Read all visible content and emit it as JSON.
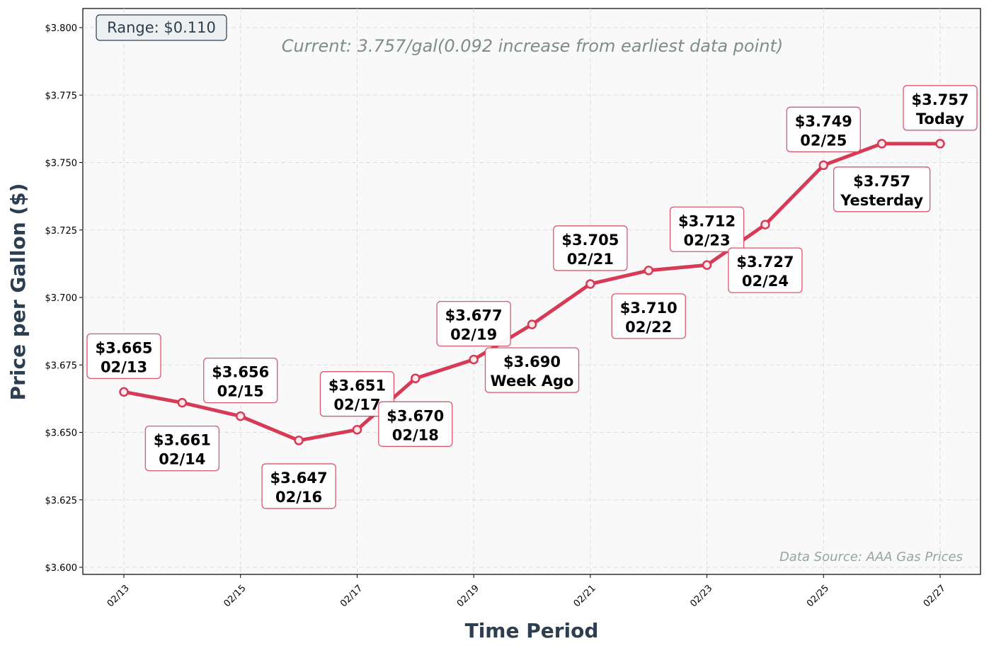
{
  "chart_data": {
    "type": "line",
    "xlabel": "Time Period",
    "ylabel": "Price per Gallon ($)",
    "ylim": [
      3.597,
      3.807
    ],
    "yticks": [
      "$3.600",
      "$3.625",
      "$3.650",
      "$3.675",
      "$3.700",
      "$3.725",
      "$3.750",
      "$3.775",
      "$3.800"
    ],
    "ytick_values": [
      3.6,
      3.625,
      3.65,
      3.675,
      3.7,
      3.725,
      3.75,
      3.775,
      3.8
    ],
    "xticks": [
      "02/13",
      "02/15",
      "02/17",
      "02/19",
      "02/21",
      "02/23",
      "02/25",
      "02/27"
    ],
    "grid": true,
    "color": "#d63a55",
    "background": "#f9f9f9",
    "x": [
      "02/13",
      "02/14",
      "02/15",
      "02/16",
      "02/17",
      "02/18",
      "02/19",
      "02/20",
      "02/21",
      "02/22",
      "02/23",
      "02/24",
      "02/25",
      "02/26",
      "02/27"
    ],
    "values": [
      3.665,
      3.661,
      3.656,
      3.647,
      3.651,
      3.67,
      3.677,
      3.69,
      3.705,
      3.71,
      3.712,
      3.727,
      3.749,
      3.757,
      3.757
    ],
    "point_labels": [
      {
        "price": "$3.665",
        "tag": "02/13"
      },
      {
        "price": "$3.661",
        "tag": "02/14"
      },
      {
        "price": "$3.656",
        "tag": "02/15"
      },
      {
        "price": "$3.647",
        "tag": "02/16"
      },
      {
        "price": "$3.651",
        "tag": "02/17"
      },
      {
        "price": "$3.670",
        "tag": "02/18"
      },
      {
        "price": "$3.677",
        "tag": "02/19"
      },
      {
        "price": "$3.690",
        "tag": "Week Ago"
      },
      {
        "price": "$3.705",
        "tag": "02/21"
      },
      {
        "price": "$3.710",
        "tag": "02/22"
      },
      {
        "price": "$3.712",
        "tag": "02/23"
      },
      {
        "price": "$3.727",
        "tag": "02/24"
      },
      {
        "price": "$3.749",
        "tag": "02/25"
      },
      {
        "price": "$3.757",
        "tag": "Yesterday"
      },
      {
        "price": "$3.757",
        "tag": "Today"
      }
    ],
    "annotations": {
      "range": "Range: $0.110",
      "current": "Current: 3.757/gal(0.092 increase from earliest data point)",
      "source": "Data Source: AAA Gas Prices"
    }
  }
}
